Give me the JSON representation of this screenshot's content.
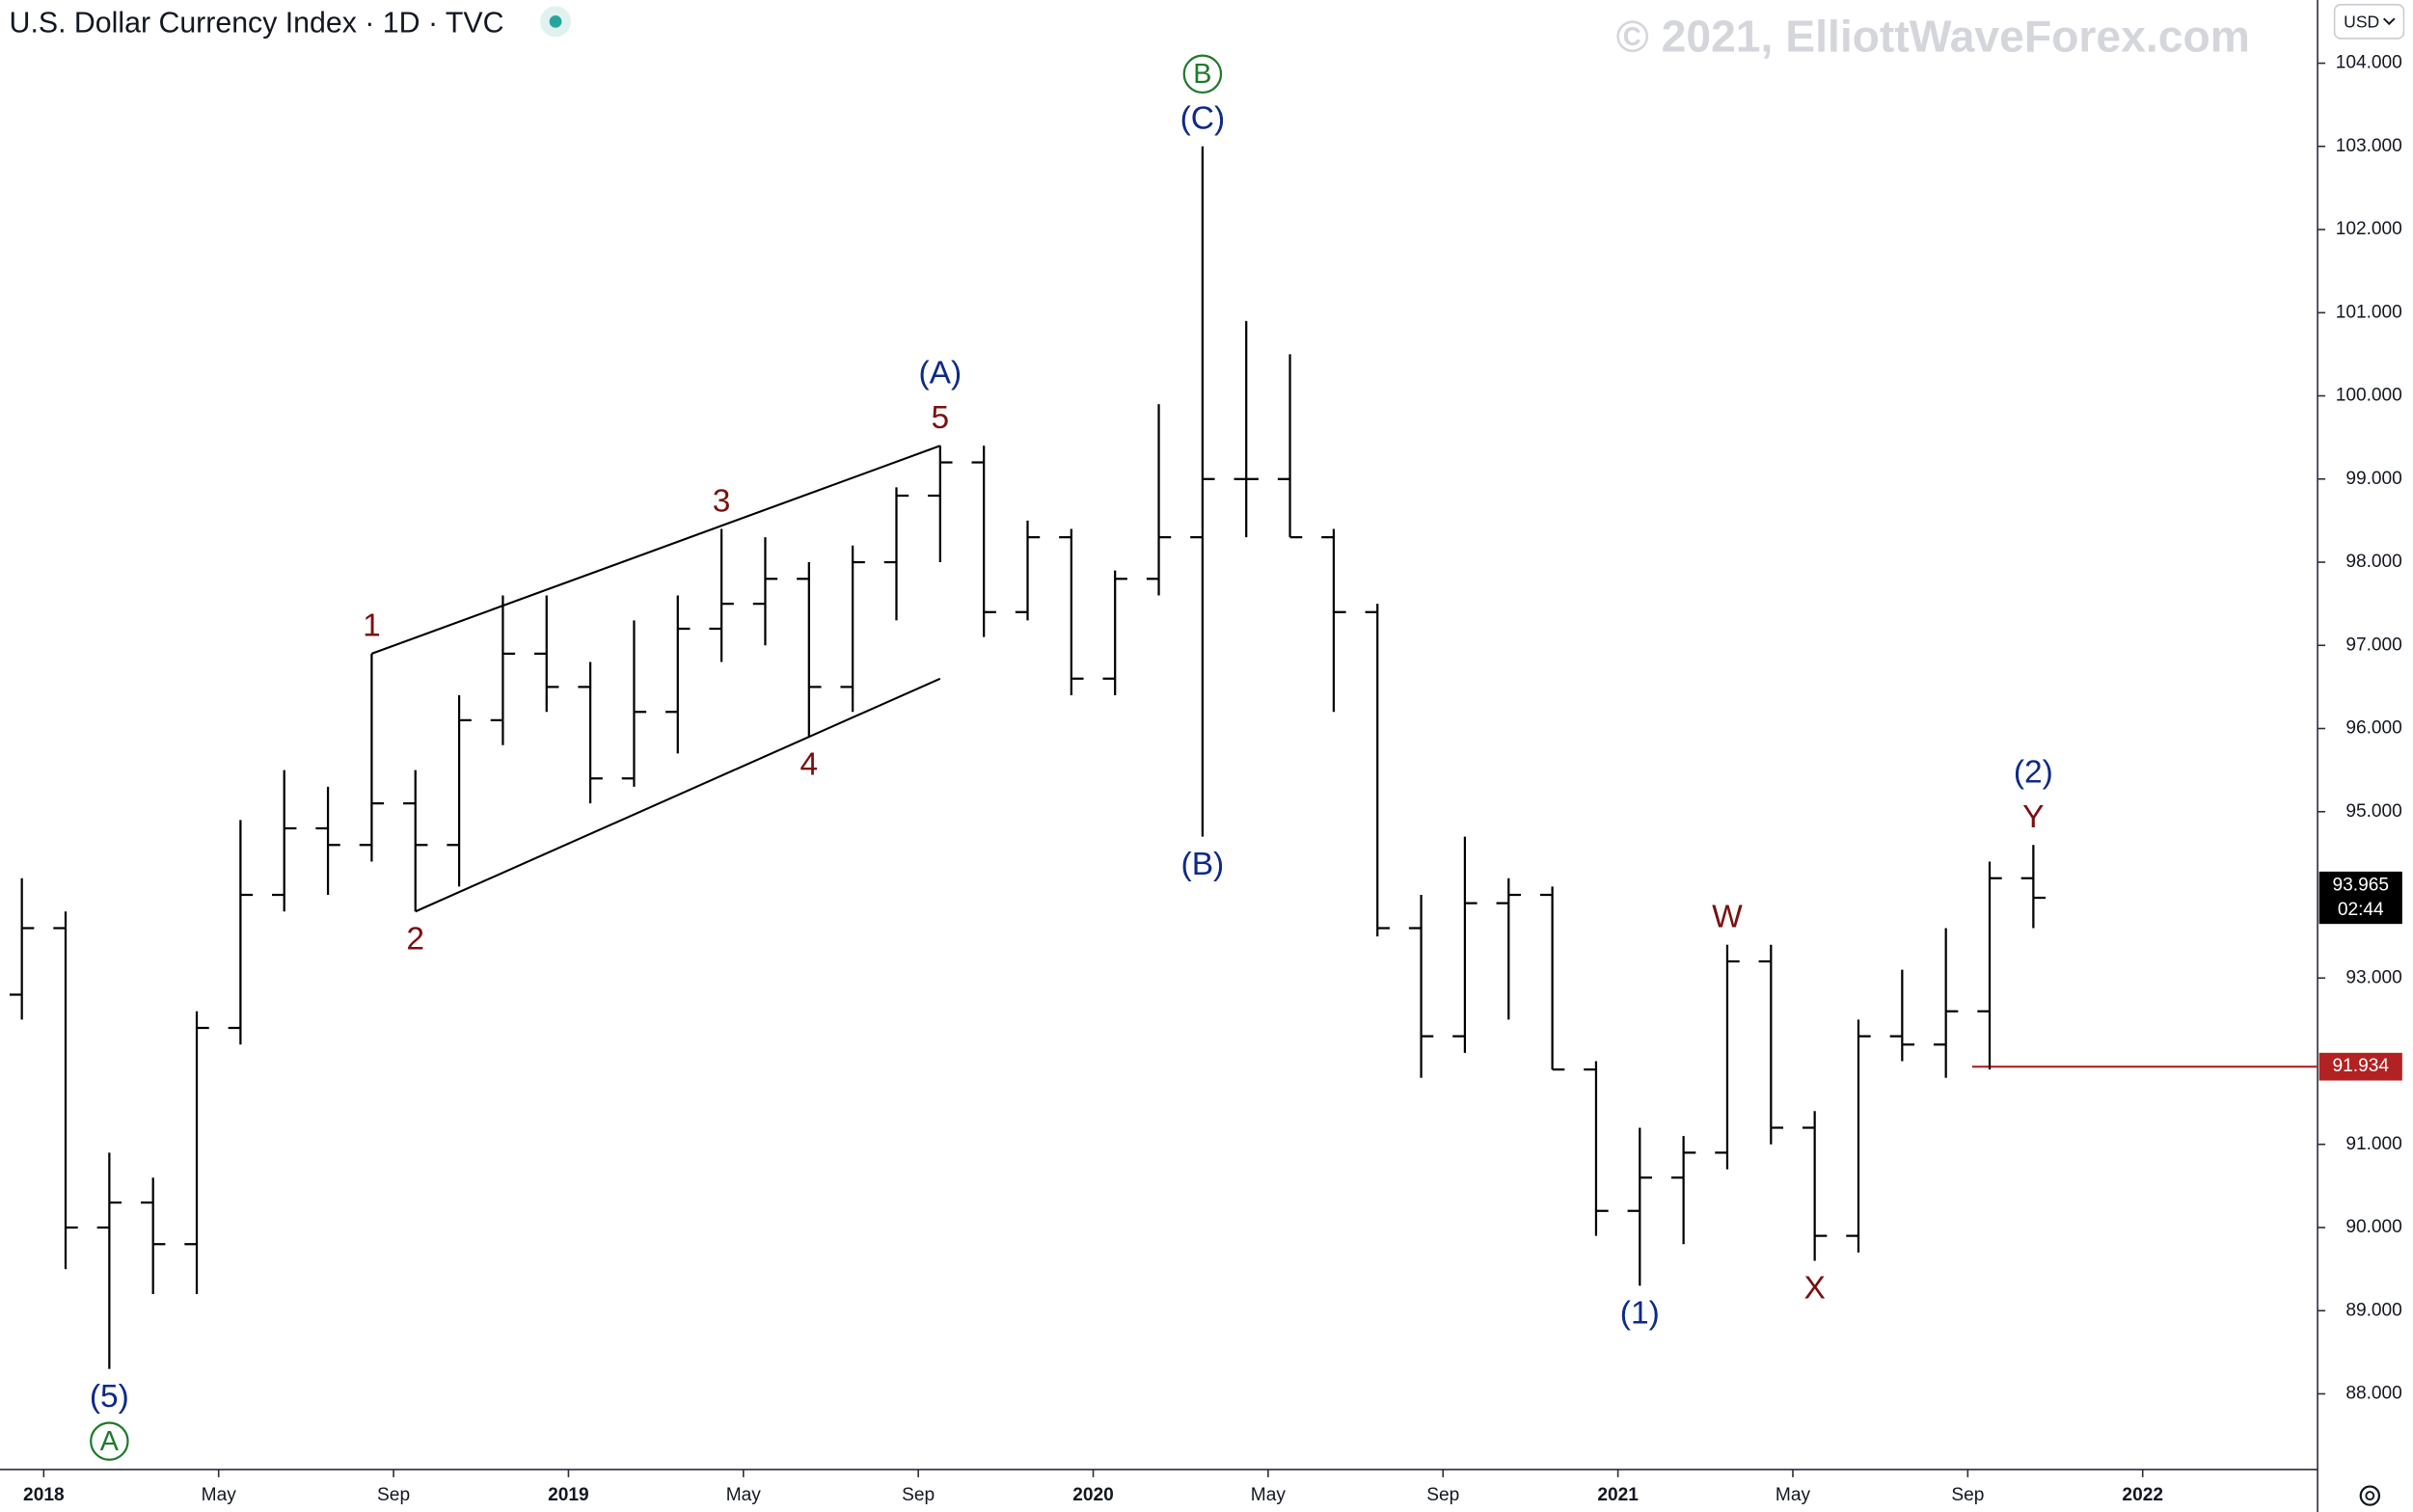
{
  "chart_data": {
    "type": "ohlc",
    "title": "U.S. Dollar Currency Index · 1D · TVC",
    "watermark": "© 2021, ElliottWaveForex.com",
    "currency": "USD",
    "color": "#000000",
    "x": [
      "2017-12",
      "2018-01",
      "2018-02",
      "2018-03",
      "2018-04",
      "2018-05",
      "2018-06",
      "2018-07",
      "2018-08",
      "2018-09",
      "2018-10",
      "2018-11",
      "2018-12",
      "2019-01",
      "2019-02",
      "2019-03",
      "2019-04",
      "2019-05",
      "2019-06",
      "2019-07",
      "2019-08",
      "2019-09",
      "2019-10",
      "2019-11",
      "2019-12",
      "2020-01",
      "2020-02",
      "2020-03",
      "2020-04",
      "2020-05",
      "2020-06",
      "2020-07",
      "2020-08",
      "2020-09",
      "2020-10",
      "2020-11",
      "2020-12",
      "2021-01",
      "2021-02",
      "2021-03",
      "2021-04",
      "2021-05",
      "2021-06",
      "2021-07",
      "2021-08",
      "2021-09",
      "2021-10"
    ],
    "open": [
      92.8,
      93.6,
      90.0,
      90.3,
      89.8,
      92.4,
      94.0,
      94.8,
      94.6,
      95.1,
      94.6,
      96.1,
      96.9,
      96.5,
      95.4,
      96.2,
      97.2,
      97.5,
      97.8,
      96.5,
      98.0,
      98.8,
      99.2,
      97.4,
      98.3,
      96.6,
      97.8,
      98.3,
      99.0,
      99.0,
      98.3,
      97.4,
      93.6,
      92.3,
      93.9,
      94.0,
      91.9,
      90.2,
      90.6,
      90.9,
      93.2,
      91.2,
      89.9,
      92.3,
      92.2,
      92.6,
      94.2
    ],
    "high": [
      94.2,
      93.8,
      90.9,
      90.6,
      92.6,
      94.9,
      95.5,
      95.3,
      96.9,
      95.5,
      96.4,
      97.6,
      97.6,
      96.8,
      97.3,
      97.6,
      98.4,
      98.3,
      98.0,
      98.2,
      98.9,
      99.4,
      99.4,
      98.5,
      98.4,
      97.9,
      99.9,
      103.0,
      100.9,
      100.5,
      98.4,
      97.5,
      94.0,
      94.7,
      94.2,
      94.1,
      92.0,
      91.2,
      91.1,
      93.4,
      93.4,
      91.4,
      92.5,
      93.1,
      93.6,
      94.4,
      94.6
    ],
    "low": [
      92.5,
      89.5,
      88.3,
      89.2,
      89.2,
      92.2,
      93.8,
      94.0,
      94.4,
      93.8,
      94.1,
      95.8,
      96.2,
      95.1,
      95.3,
      95.7,
      96.8,
      97.0,
      95.9,
      96.2,
      97.3,
      98.0,
      97.1,
      97.3,
      96.4,
      96.4,
      97.6,
      94.7,
      98.3,
      98.3,
      96.2,
      93.5,
      91.8,
      92.1,
      92.5,
      91.9,
      89.9,
      89.3,
      89.8,
      90.7,
      91.0,
      89.6,
      89.7,
      92.0,
      91.8,
      91.9,
      93.6
    ],
    "close": [
      93.6,
      90.0,
      90.3,
      89.8,
      92.4,
      94.0,
      94.8,
      94.6,
      95.1,
      94.6,
      96.1,
      96.9,
      96.5,
      95.4,
      96.2,
      97.2,
      97.5,
      97.8,
      96.5,
      98.0,
      98.8,
      99.2,
      97.4,
      98.3,
      96.6,
      97.8,
      98.3,
      99.0,
      99.0,
      98.3,
      97.4,
      93.6,
      92.3,
      93.9,
      94.0,
      91.9,
      90.2,
      90.6,
      90.9,
      93.2,
      91.2,
      89.9,
      92.3,
      92.2,
      92.6,
      94.2,
      93.965
    ],
    "last_price_label": "93.965",
    "countdown": "02:44",
    "price_line": {
      "value": 91.934,
      "label": "91.934",
      "from": "2021-09",
      "color": "#b22222"
    },
    "trendlines": [
      {
        "x": [
          "2018-08",
          "2019-09"
        ],
        "y": [
          96.9,
          99.4
        ]
      },
      {
        "x": [
          "2018-09",
          "2019-09"
        ],
        "y": [
          93.8,
          96.6
        ]
      }
    ],
    "annotations": [
      {
        "text": "(5)",
        "x": "2018-02",
        "side": "low",
        "color": "#0d2a8a"
      },
      {
        "text": "A",
        "x": "2018-02",
        "side": "low",
        "color": "#1e7a2a",
        "circle": true
      },
      {
        "text": "1",
        "x": "2018-08",
        "side": "high",
        "color": "#7b1010"
      },
      {
        "text": "2",
        "x": "2018-09",
        "side": "low",
        "color": "#7b1010"
      },
      {
        "text": "3",
        "x": "2019-04",
        "side": "high",
        "color": "#7b1010"
      },
      {
        "text": "4",
        "x": "2019-06",
        "side": "low",
        "color": "#7b1010"
      },
      {
        "text": "5",
        "x": "2019-09",
        "side": "high",
        "color": "#7b1010"
      },
      {
        "text": "(A)",
        "x": "2019-09",
        "side": "high",
        "color": "#0d2a8a"
      },
      {
        "text": "(B)",
        "x": "2020-03",
        "side": "low",
        "color": "#0d2a8a"
      },
      {
        "text": "(C)",
        "x": "2020-03",
        "side": "high",
        "color": "#0d2a8a"
      },
      {
        "text": "B",
        "x": "2020-03",
        "side": "high",
        "color": "#1e7a2a",
        "circle": true
      },
      {
        "text": "(1)",
        "x": "2021-01",
        "side": "low",
        "color": "#0d2a8a"
      },
      {
        "text": "W",
        "x": "2021-03",
        "side": "high",
        "color": "#7b1010"
      },
      {
        "text": "X",
        "x": "2021-05",
        "side": "low",
        "color": "#7b1010"
      },
      {
        "text": "Y",
        "x": "2021-10",
        "side": "high",
        "color": "#7b1010"
      },
      {
        "text": "(2)",
        "x": "2021-10",
        "side": "high",
        "color": "#0d2a8a"
      }
    ],
    "xlim": [
      "2017-12",
      "2022-05"
    ],
    "xticks": [
      {
        "value": "2018-01",
        "label": "2018"
      },
      {
        "value": "2018-05",
        "label": "May"
      },
      {
        "value": "2018-09",
        "label": "Sep"
      },
      {
        "value": "2019-01",
        "label": "2019"
      },
      {
        "value": "2019-05",
        "label": "May"
      },
      {
        "value": "2019-09",
        "label": "Sep"
      },
      {
        "value": "2020-01",
        "label": "2020"
      },
      {
        "value": "2020-05",
        "label": "May"
      },
      {
        "value": "2020-09",
        "label": "Sep"
      },
      {
        "value": "2021-01",
        "label": "2021"
      },
      {
        "value": "2021-05",
        "label": "May"
      },
      {
        "value": "2021-09",
        "label": "Sep"
      },
      {
        "value": "2022-01",
        "label": "2022"
      }
    ],
    "ylim": [
      87.09,
      104.76
    ],
    "yticks": [
      {
        "value": 88,
        "label": "88.000"
      },
      {
        "value": 89,
        "label": "89.000"
      },
      {
        "value": 90,
        "label": "90.000"
      },
      {
        "value": 91,
        "label": "91.000"
      },
      {
        "value": 93,
        "label": "93.000"
      },
      {
        "value": 95,
        "label": "95.000"
      },
      {
        "value": 96,
        "label": "96.000"
      },
      {
        "value": 97,
        "label": "97.000"
      },
      {
        "value": 98,
        "label": "98.000"
      },
      {
        "value": 99,
        "label": "99.000"
      },
      {
        "value": 100,
        "label": "100.000"
      },
      {
        "value": 101,
        "label": "101.000"
      },
      {
        "value": 102,
        "label": "102.000"
      },
      {
        "value": 103,
        "label": "103.000"
      },
      {
        "value": 104,
        "label": "104.000"
      }
    ]
  }
}
